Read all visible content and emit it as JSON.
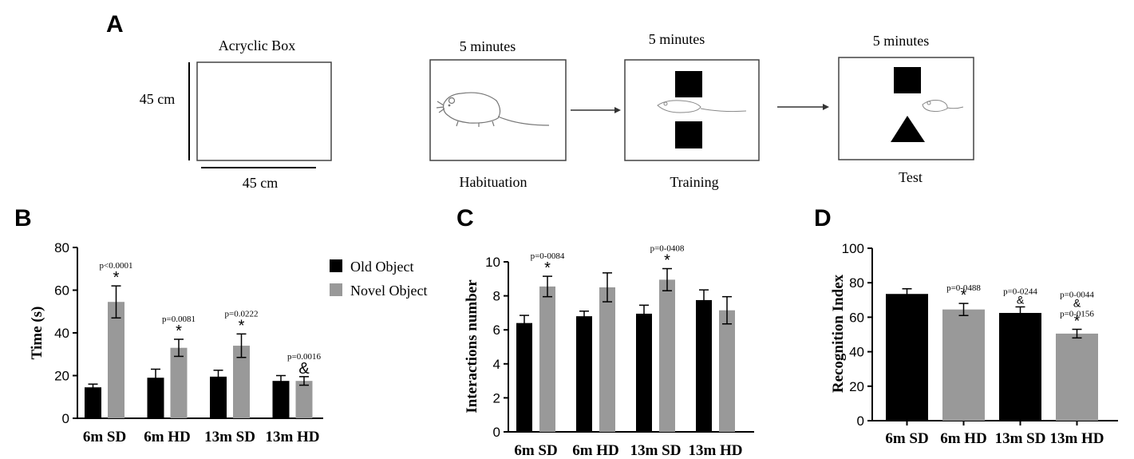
{
  "panel_a": {
    "letter": "A",
    "box": {
      "title": "Acryclic  Box",
      "height_label": "45 cm",
      "width_label": "45 cm"
    },
    "stages": [
      {
        "duration": "5 minutes",
        "label": "Habituation"
      },
      {
        "duration": "5 minutes",
        "label": "Training"
      },
      {
        "duration": "5 minutes",
        "label": "Test"
      }
    ]
  },
  "chart_data": [
    {
      "panel": "B",
      "type": "bar",
      "ylabel": "Time (s)",
      "xlabel": "",
      "ylim": [
        0,
        80
      ],
      "yticks": [
        0,
        20,
        40,
        60,
        80
      ],
      "categories": [
        "6m SD",
        "6m HD",
        "13m SD",
        "13m HD"
      ],
      "series": [
        {
          "name": "Old Object",
          "color": "#000000",
          "values": [
            14.5,
            19,
            19.5,
            17.5
          ],
          "errors": [
            1.5,
            4,
            3,
            2.5
          ]
        },
        {
          "name": "Novel Object",
          "color": "#999999",
          "values": [
            54.5,
            33,
            34,
            17.5
          ],
          "errors": [
            7.5,
            4,
            5.5,
            2
          ]
        }
      ],
      "annotations": [
        {
          "category": "6m SD",
          "series": "Novel Object",
          "pvalue": "p<0.0001",
          "symbol": "*"
        },
        {
          "category": "6m HD",
          "series": "Novel Object",
          "pvalue": "p=0.0081",
          "symbol": "*"
        },
        {
          "category": "13m SD",
          "series": "Novel Object",
          "pvalue": "p=0.0222",
          "symbol": "*"
        },
        {
          "category": "13m HD",
          "series": "Novel Object",
          "pvalue": "p=0.0016",
          "symbol": "&"
        }
      ],
      "legend": "right"
    },
    {
      "panel": "C",
      "type": "bar",
      "ylabel": "Interactions number",
      "xlabel": "",
      "ylim": [
        0,
        10
      ],
      "yticks": [
        0,
        2,
        4,
        6,
        8,
        10
      ],
      "categories": [
        "6m SD",
        "6m HD",
        "13m SD",
        "13m HD"
      ],
      "series": [
        {
          "color": "#000000",
          "values": [
            6.4,
            6.8,
            6.95,
            7.75
          ],
          "errors": [
            0.45,
            0.3,
            0.5,
            0.6
          ]
        },
        {
          "color": "#999999",
          "values": [
            8.55,
            8.5,
            8.95,
            7.15
          ],
          "errors": [
            0.6,
            0.85,
            0.65,
            0.8
          ]
        }
      ],
      "annotations": [
        {
          "category": "6m SD",
          "series": 1,
          "pvalue": "p=0-0084",
          "symbol": "*"
        },
        {
          "category": "13m SD",
          "series": 1,
          "pvalue": "p=0-0408",
          "symbol": "*"
        }
      ]
    },
    {
      "panel": "D",
      "type": "bar",
      "ylabel": "Recognition Index",
      "xlabel": "",
      "ylim": [
        0,
        100
      ],
      "yticks": [
        0,
        20,
        40,
        60,
        80,
        100
      ],
      "categories": [
        "6m SD",
        "6m HD",
        "13m SD",
        "13m HD"
      ],
      "values": [
        73.5,
        64.5,
        62.5,
        50.5
      ],
      "errors": [
        3,
        3.5,
        3.5,
        2.5
      ],
      "colors": [
        "#000000",
        "#999999",
        "#000000",
        "#999999"
      ],
      "annotations": [
        {
          "category": "6m HD",
          "lines": [
            "p=0-0488",
            "*"
          ]
        },
        {
          "category": "13m SD",
          "lines": [
            "p=0-0244",
            "&"
          ]
        },
        {
          "category": "13m HD",
          "lines": [
            "p=0-0044",
            "&",
            "p=0-0156",
            "*"
          ]
        }
      ]
    }
  ]
}
